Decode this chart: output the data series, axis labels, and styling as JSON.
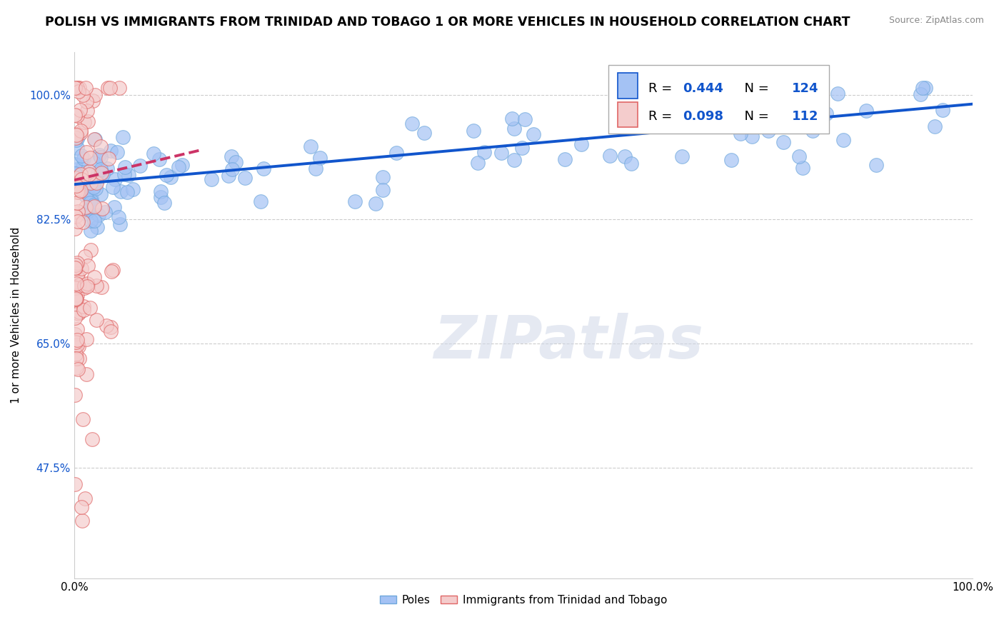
{
  "title": "POLISH VS IMMIGRANTS FROM TRINIDAD AND TOBAGO 1 OR MORE VEHICLES IN HOUSEHOLD CORRELATION CHART",
  "source": "Source: ZipAtlas.com",
  "ylabel": "1 or more Vehicles in Household",
  "xlim": [
    0.0,
    1.0
  ],
  "ylim": [
    0.32,
    1.06
  ],
  "yticks": [
    0.475,
    0.65,
    0.825,
    1.0
  ],
  "ytick_labels": [
    "47.5%",
    "65.0%",
    "82.5%",
    "100.0%"
  ],
  "xtick_labels": [
    "0.0%",
    "100.0%"
  ],
  "legend_labels": [
    "Poles",
    "Immigrants from Trinidad and Tobago"
  ],
  "blue_color": "#a4c2f4",
  "pink_color": "#f4cccc",
  "blue_edge_color": "#6fa8dc",
  "pink_edge_color": "#e06666",
  "blue_line_color": "#1155cc",
  "pink_line_color": "#cc3366",
  "r_blue": 0.444,
  "n_blue": 124,
  "r_pink": 0.098,
  "n_pink": 112,
  "background_color": "#ffffff",
  "grid_color": "#cccccc",
  "watermark": "ZIPatlas",
  "title_fontsize": 12.5,
  "axis_label_fontsize": 11,
  "tick_fontsize": 11
}
